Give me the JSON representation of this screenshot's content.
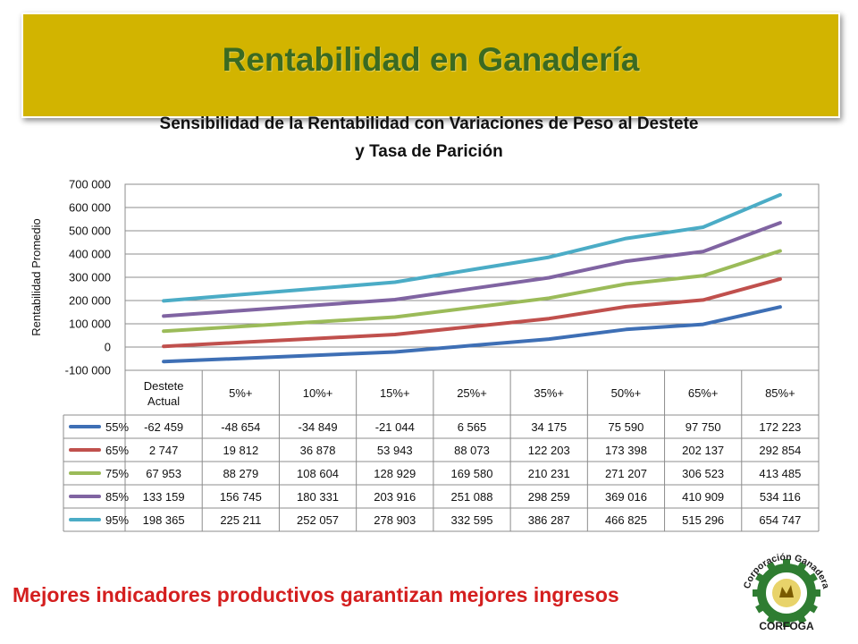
{
  "banner": {
    "title": "Rentabilidad en Ganadería"
  },
  "chart_data": {
    "type": "line",
    "title_line1": "Sensibilidad de la Rentabilidad con Variaciones de Peso al Destete",
    "title_line2": "y Tasa de Parición",
    "ylabel": "Rentabilidad Promedio",
    "xlabel": "",
    "ylim": [
      -100000,
      700000
    ],
    "yticks": [
      -100000,
      0,
      100000,
      200000,
      300000,
      400000,
      500000,
      600000,
      700000
    ],
    "ytick_labels": [
      "-100 000",
      "0",
      "100 000",
      "200 000",
      "300 000",
      "400 000",
      "500 000",
      "600 000",
      "700 000"
    ],
    "grid": true,
    "categories": [
      [
        "Destete",
        "Actual"
      ],
      [
        "5%+"
      ],
      [
        "10%+"
      ],
      [
        "15%+"
      ],
      [
        "25%+"
      ],
      [
        "35%+"
      ],
      [
        "50%+"
      ],
      [
        "65%+"
      ],
      [
        "85%+"
      ]
    ],
    "series": [
      {
        "name": "55%",
        "color": "#3e6fb5",
        "values": [
          -62459,
          -48654,
          -34849,
          -21044,
          6565,
          34175,
          75590,
          97750,
          172223
        ],
        "labels": [
          "-62 459",
          "-48 654",
          "-34 849",
          "-21 044",
          "6 565",
          "34 175",
          "75 590",
          "97 750",
          "172 223"
        ]
      },
      {
        "name": "65%",
        "color": "#c0504d",
        "values": [
          2747,
          19812,
          36878,
          53943,
          88073,
          122203,
          173398,
          202137,
          292854
        ],
        "labels": [
          "2 747",
          "19 812",
          "36 878",
          "53 943",
          "88 073",
          "122 203",
          "173 398",
          "202 137",
          "292 854"
        ]
      },
      {
        "name": "75%",
        "color": "#9bbb59",
        "values": [
          67953,
          88279,
          108604,
          128929,
          169580,
          210231,
          271207,
          306523,
          413485
        ],
        "labels": [
          "67 953",
          "88 279",
          "108 604",
          "128 929",
          "169 580",
          "210 231",
          "271 207",
          "306 523",
          "413 485"
        ]
      },
      {
        "name": "85%",
        "color": "#8064a2",
        "values": [
          133159,
          156745,
          180331,
          203916,
          251088,
          298259,
          369016,
          410909,
          534116
        ],
        "labels": [
          "133 159",
          "156 745",
          "180 331",
          "203 916",
          "251 088",
          "298 259",
          "369 016",
          "410 909",
          "534 116"
        ]
      },
      {
        "name": "95%",
        "color": "#4bacc6",
        "values": [
          198365,
          225211,
          252057,
          278903,
          332595,
          386287,
          466825,
          515296,
          654747
        ],
        "labels": [
          "198 365",
          "225 211",
          "252 057",
          "278 903",
          "332 595",
          "386 287",
          "466 825",
          "515 296",
          "654 747"
        ]
      }
    ]
  },
  "footer": {
    "text": "Mejores indicadores productivos garantizan mejores ingresos"
  },
  "logo": {
    "top_text": "Corporación Ganadera",
    "bottom_text": "CORFOGA",
    "gear_color": "#2f7d32",
    "text_color": "#1c1c1c",
    "ring_color": "#c8a200"
  }
}
